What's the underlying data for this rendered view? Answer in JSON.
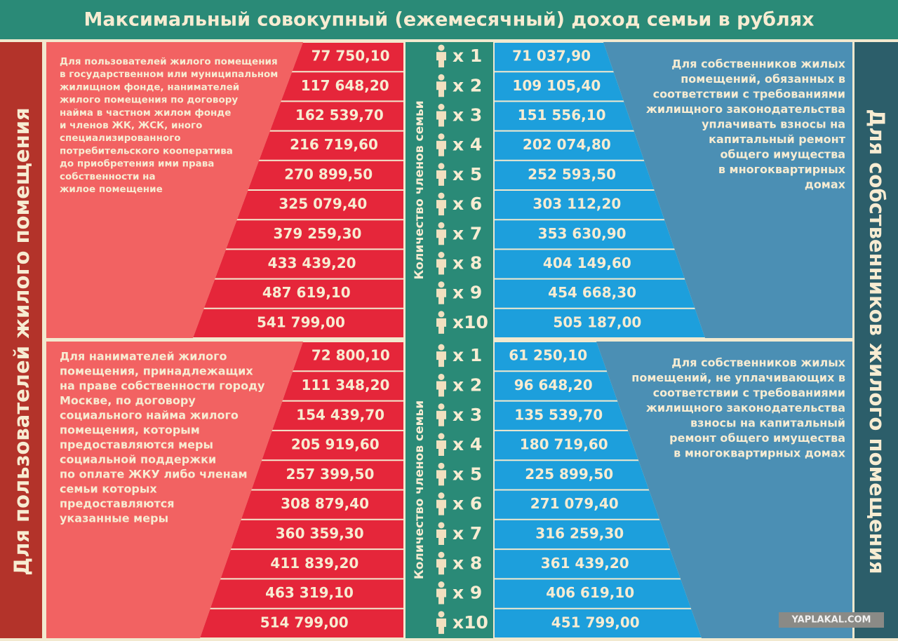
{
  "title": "Максимальный совокупный (ежемесячный) доход семьи в рублях",
  "left_side_label": "Для пользователей жилого помещения",
  "right_side_label": "Для собственников жилого помещения",
  "watermark": "YAPLAKAL.COM",
  "sections": [
    {
      "middle_label": "Количество членов семьи",
      "counts": [
        "x 1",
        "x 2",
        "x 3",
        "x 4",
        "x 5",
        "x 6",
        "x 7",
        "x 8",
        "x 9",
        "x10"
      ],
      "left_description": [
        "Для пользователей жилого помещения",
        "в государственном или муниципальном",
        "жилищном фонде, нанимателей",
        "жилого помещения по договору",
        "найма в частном жилом фонде",
        "и членов ЖК, ЖСК, иного",
        "специализированного",
        "потребительского кооператива",
        "до приобретения ими права",
        "собственности на",
        "жилое помещение"
      ],
      "right_description": [
        "Для собственников жилых",
        "помещений, обязанных в",
        "соответствии с требованиями",
        "жилищного законодательства",
        "уплачивать взносы на",
        "капитальный ремонт",
        "общего имущества",
        "в многоквартирных",
        "домах"
      ],
      "left_values": [
        "77 750,10",
        "117 648,20",
        "162 539,70",
        "216 719,60",
        "270 899,50",
        "325 079,40",
        "379 259,30",
        "433 439,20",
        "487 619,10",
        "541 799,00"
      ],
      "right_values": [
        "71 037,90",
        "109 105,40",
        "151 556,10",
        "202 074,80",
        "252 593,50",
        "303 112,20",
        "353 630,90",
        "404 149,60",
        "454 668,30",
        "505 187,00"
      ]
    },
    {
      "middle_label": "Количество членов семьи",
      "counts": [
        "x 1",
        "x 2",
        "x 3",
        "x 4",
        "x 5",
        "x 6",
        "x 7",
        "x 8",
        "x 9",
        "x10"
      ],
      "left_description": [
        "Для нанимателей жилого",
        "помещения, принадлежащих",
        "на праве собственности городу",
        "Москве, по договору",
        "социального найма жилого",
        "помещения, которым",
        "предоставляются меры",
        "социальной поддержки",
        "по оплате ЖКУ либо членам",
        "семьи которых",
        "предоставляются",
        "указанные меры"
      ],
      "right_description": [
        "Для собственников жилых",
        "помещений, не уплачивающих в",
        "соответствии с требованиями",
        "жилищного законодательства",
        "взносы на капитальный",
        "ремонт общего имущества",
        "в многоквартирных домах"
      ],
      "left_values": [
        "72 800,10",
        "111 348,20",
        "154 439,70",
        "205 919,60",
        "257 399,50",
        "308 879,40",
        "360 359,30",
        "411 839,20",
        "463 319,10",
        "514 799,00"
      ],
      "right_values": [
        "61 250,10",
        "96 648,20",
        "135 539,70",
        "180 719,60",
        "225 899,50",
        "271 079,40",
        "316 259,30",
        "361 439,20",
        "406 619,10",
        "451 799,00"
      ]
    }
  ]
}
